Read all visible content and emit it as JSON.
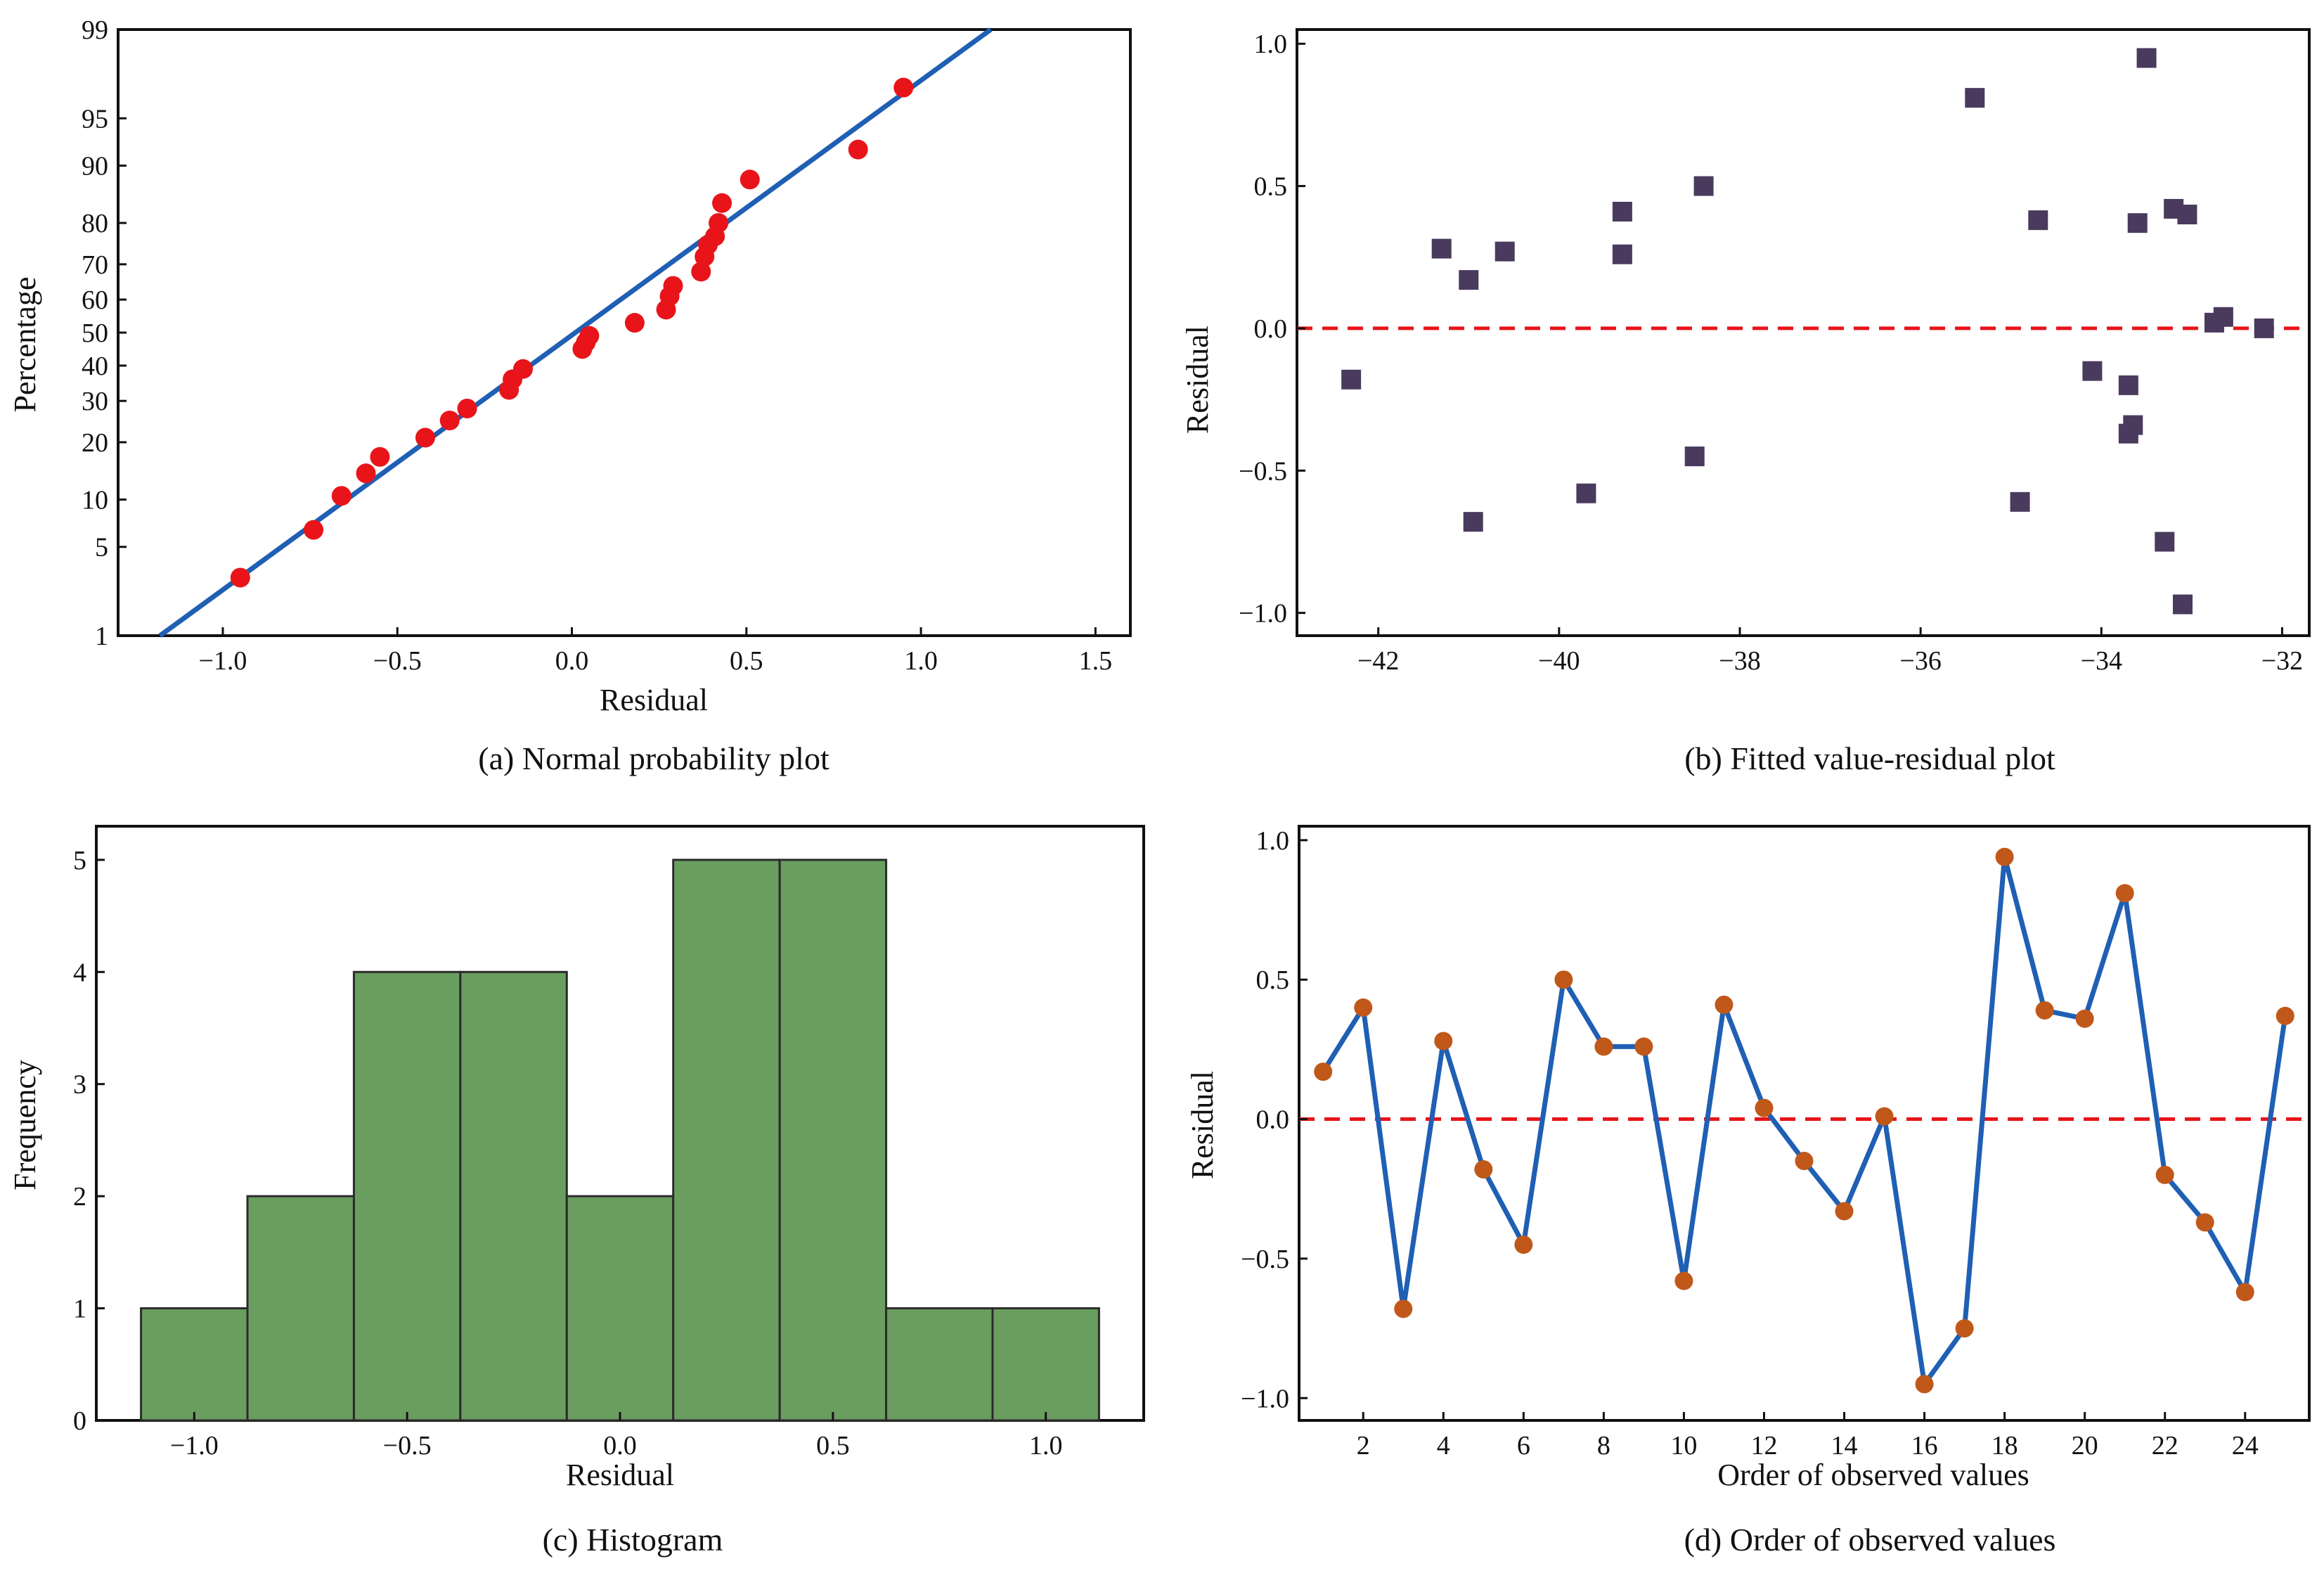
{
  "chart_data": [
    {
      "id": "a",
      "type": "scatter",
      "title": "",
      "caption": "(a) Normal probability plot",
      "xlabel": "Residual",
      "ylabel": "Percentage",
      "xlim": [
        -1.3,
        1.6
      ],
      "yaxis_scale": "normal-probability",
      "ylim": [
        1,
        99
      ],
      "xticks": [
        -1.0,
        -0.5,
        0.0,
        0.5,
        1.0,
        1.5
      ],
      "xtick_labels": [
        "−1.0",
        "−0.5",
        "0.0",
        "0.5",
        "1.0",
        "1.5"
      ],
      "yticks": [
        1,
        5,
        10,
        20,
        30,
        40,
        50,
        60,
        70,
        80,
        90,
        95,
        99
      ],
      "ytick_labels": [
        "1",
        "5",
        "10",
        "20",
        "30",
        "40",
        "50",
        "60",
        "70",
        "80",
        "90",
        "95",
        "99"
      ],
      "points": {
        "color": "#e8141a",
        "x": [
          -0.95,
          -0.74,
          -0.66,
          -0.59,
          -0.55,
          -0.42,
          -0.35,
          -0.3,
          -0.18,
          -0.17,
          -0.14,
          0.03,
          0.04,
          0.05,
          0.18,
          0.27,
          0.28,
          0.29,
          0.37,
          0.38,
          0.39,
          0.41,
          0.42,
          0.43,
          0.51,
          0.82,
          0.95
        ],
        "y": [
          3,
          6.5,
          10.5,
          14,
          17,
          21,
          25,
          28,
          33,
          36,
          39,
          45,
          47,
          49,
          53,
          57,
          61,
          64,
          68,
          72,
          75,
          77,
          80,
          84,
          88,
          92,
          97
        ]
      },
      "fit_line": {
        "color": "#1f5fb4",
        "x": [
          -1.18,
          1.2
        ],
        "y": [
          1,
          99
        ]
      }
    },
    {
      "id": "b",
      "type": "scatter",
      "title": "",
      "caption": "(b) Fitted value-residual plot",
      "xlabel": "",
      "ylabel": "Residual",
      "xlim": [
        -42.9,
        -31.7
      ],
      "ylim": [
        -1.08,
        1.05
      ],
      "xticks": [
        -42,
        -40,
        -38,
        -36,
        -34,
        -32
      ],
      "xtick_labels": [
        "−42",
        "−40",
        "−38",
        "−36",
        "−34",
        "−32"
      ],
      "yticks": [
        -1.0,
        -0.5,
        0.0,
        0.5,
        1.0
      ],
      "ytick_labels": [
        "−1.0",
        "−0.5",
        "0.0",
        "0.5",
        "1.0"
      ],
      "reference_line": {
        "y": 0.0,
        "color": "#e8141a",
        "style": "dashed"
      },
      "points": {
        "color": "#4a3a5e",
        "marker": "square",
        "x": [
          -42.3,
          -41.3,
          -41.0,
          -40.95,
          -40.6,
          -39.7,
          -39.3,
          -39.3,
          -38.5,
          -38.4,
          -35.4,
          -34.9,
          -34.7,
          -34.1,
          -33.7,
          -33.7,
          -33.65,
          -33.6,
          -33.5,
          -33.3,
          -33.2,
          -33.1,
          -33.05,
          -32.75,
          -32.65,
          -32.2
        ],
        "y": [
          -0.18,
          0.28,
          0.17,
          -0.68,
          0.27,
          -0.58,
          0.41,
          0.26,
          -0.45,
          0.5,
          0.81,
          -0.61,
          0.38,
          -0.15,
          -0.2,
          -0.37,
          -0.34,
          0.37,
          0.95,
          -0.75,
          0.42,
          -0.97,
          0.4,
          0.02,
          0.04,
          0.0
        ]
      }
    },
    {
      "id": "c",
      "type": "bar",
      "title": "",
      "caption": "(c) Histogram",
      "xlabel": "Residual",
      "ylabel": "Frequency",
      "xlim": [
        -1.23,
        1.23
      ],
      "ylim": [
        0,
        5.3
      ],
      "xticks": [
        -1.0,
        -0.5,
        0.0,
        0.5,
        1.0
      ],
      "xtick_labels": [
        "−1.0",
        "−0.5",
        "0.0",
        "0.5",
        "1.0"
      ],
      "yticks": [
        0,
        1,
        2,
        3,
        4,
        5
      ],
      "ytick_labels": [
        "0",
        "1",
        "2",
        "3",
        "4",
        "5"
      ],
      "bar_color": "#6a9e60",
      "bin_edges": [
        -1.125,
        -0.875,
        -0.625,
        -0.375,
        -0.125,
        0.125,
        0.375,
        0.625,
        0.875,
        1.125
      ],
      "values": [
        1,
        2,
        4,
        4,
        2,
        5,
        5,
        1,
        1
      ]
    },
    {
      "id": "d",
      "type": "line",
      "title": "",
      "caption": "(d) Order of observed values",
      "xlabel": "Order of observed values",
      "ylabel": "Residual",
      "xlim": [
        0.4,
        25.6
      ],
      "ylim": [
        -1.08,
        1.05
      ],
      "xticks": [
        2,
        4,
        6,
        8,
        10,
        12,
        14,
        16,
        18,
        20,
        22,
        24
      ],
      "xtick_labels": [
        "2",
        "4",
        "6",
        "8",
        "10",
        "12",
        "14",
        "16",
        "18",
        "20",
        "22",
        "24"
      ],
      "yticks": [
        -1.0,
        -0.5,
        0.0,
        0.5,
        1.0
      ],
      "ytick_labels": [
        "−1.0",
        "−0.5",
        "0.0",
        "0.5",
        "1.0"
      ],
      "reference_line": {
        "y": 0.0,
        "color": "#e8141a",
        "style": "dashed"
      },
      "series": [
        {
          "name": "Residual",
          "line_color": "#1f5fb4",
          "marker_color": "#c0581a",
          "x": [
            1,
            2,
            3,
            4,
            5,
            6,
            7,
            8,
            9,
            10,
            11,
            12,
            13,
            14,
            15,
            16,
            17,
            18,
            19,
            20,
            21,
            22,
            23,
            24,
            25
          ],
          "values": [
            0.17,
            0.4,
            -0.68,
            0.28,
            -0.18,
            -0.45,
            0.5,
            0.26,
            0.26,
            -0.58,
            0.41,
            0.04,
            -0.15,
            -0.33,
            0.01,
            -0.95,
            -0.75,
            0.94,
            0.39,
            0.36,
            0.81,
            -0.2,
            -0.37,
            -0.62,
            0.37
          ]
        }
      ]
    }
  ]
}
